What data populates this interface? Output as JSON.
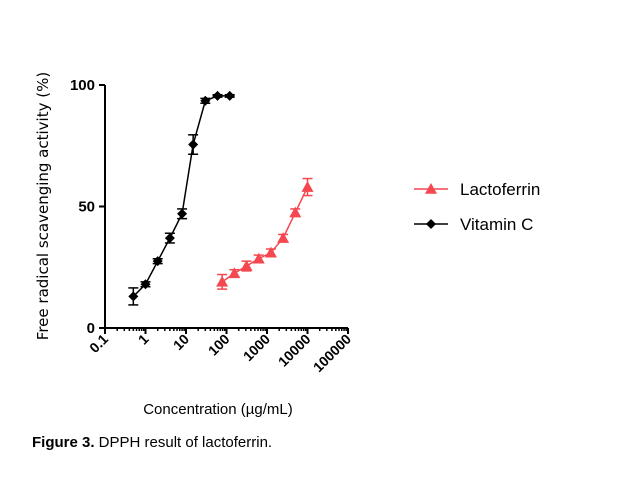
{
  "caption": {
    "label": "Figure 3.",
    "text": " DPPH result of lactoferrin."
  },
  "chart_data": {
    "type": "line",
    "title": "",
    "xlabel": "Concentration  (µg/mL)",
    "ylabel": "Free radical scavenging activity (%)",
    "x_scale": "log",
    "xlim": [
      0.1,
      100000
    ],
    "ylim": [
      0,
      100
    ],
    "x_ticks": [
      0.1,
      1,
      10,
      100,
      1000,
      10000,
      100000
    ],
    "x_tick_labels": [
      "0.1",
      "1",
      "10",
      "100",
      "1000",
      "10000",
      "100000"
    ],
    "y_ticks": [
      0,
      50,
      100
    ],
    "y_tick_labels": [
      "0",
      "50",
      "100"
    ],
    "grid": false,
    "legend_position": "right",
    "series": [
      {
        "name": "Lactoferrin",
        "color": "#f4474f",
        "marker": "triangle",
        "x": [
          78,
          156,
          312,
          625,
          1250,
          2500,
          5000,
          10000
        ],
        "y": [
          19,
          22.5,
          25.5,
          28.5,
          31,
          37,
          47.5,
          58
        ],
        "err": [
          3,
          1.5,
          2,
          1.5,
          1.5,
          1.5,
          1.5,
          3.5
        ]
      },
      {
        "name": "Vitamin C",
        "color": "#000000",
        "marker": "diamond",
        "x": [
          0.5,
          1,
          2,
          4,
          8,
          15,
          30,
          60,
          120
        ],
        "y": [
          13,
          18,
          27.5,
          37,
          47,
          75.5,
          93.5,
          95.5,
          95.5
        ],
        "err": [
          3.5,
          1,
          1,
          2,
          2,
          4,
          1,
          0.5,
          0.5
        ]
      }
    ]
  }
}
